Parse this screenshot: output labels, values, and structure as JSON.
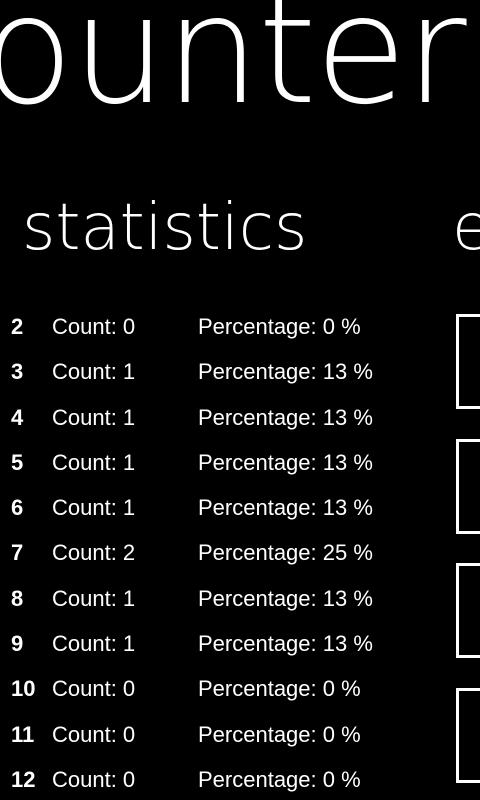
{
  "app": {
    "title": "ounter"
  },
  "statistics": {
    "title": "statistics",
    "rows": [
      {
        "number": "2",
        "count": "Count: 0",
        "percentage": "Percentage: 0 %"
      },
      {
        "number": "3",
        "count": "Count: 1",
        "percentage": "Percentage: 13 %"
      },
      {
        "number": "4",
        "count": "Count: 1",
        "percentage": "Percentage: 13 %"
      },
      {
        "number": "5",
        "count": "Count: 1",
        "percentage": "Percentage: 13 %"
      },
      {
        "number": "6",
        "count": "Count: 1",
        "percentage": "Percentage: 13 %"
      },
      {
        "number": "7",
        "count": "Count: 2",
        "percentage": "Percentage: 25 %"
      },
      {
        "number": "8",
        "count": "Count: 1",
        "percentage": "Percentage: 13 %"
      },
      {
        "number": "9",
        "count": "Count: 1",
        "percentage": "Percentage: 13 %"
      },
      {
        "number": "10",
        "count": "Count: 0",
        "percentage": "Percentage: 0 %"
      },
      {
        "number": "11",
        "count": "Count: 0",
        "percentage": "Percentage: 0 %"
      },
      {
        "number": "12",
        "count": "Count: 0",
        "percentage": "Percentage: 0 %"
      }
    ]
  },
  "next_section": {
    "title_fragment": "e"
  },
  "colors": {
    "background": "#000000",
    "foreground": "#ffffff"
  }
}
